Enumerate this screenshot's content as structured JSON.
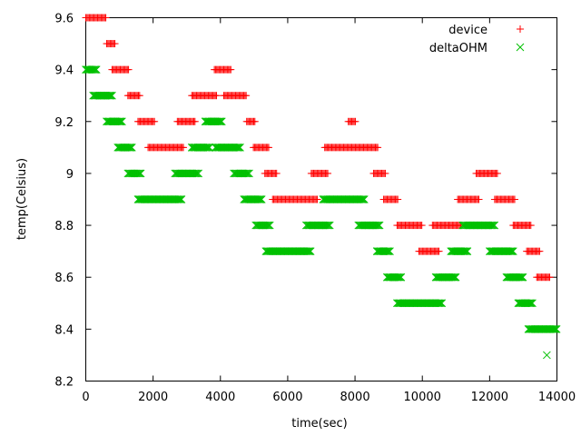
{
  "chart_data": {
    "type": "scatter",
    "title": "",
    "xlabel": "time(sec)",
    "ylabel": "temp(Celsius)",
    "xlim": [
      0,
      14000
    ],
    "ylim": [
      8.2,
      9.6
    ],
    "x_ticks": [
      0,
      2000,
      4000,
      6000,
      8000,
      10000,
      12000,
      14000
    ],
    "x_tick_labels": [
      "0",
      "2000",
      "4000",
      "6000",
      "8000",
      "10000",
      "12000",
      "14000"
    ],
    "y_ticks": [
      8.2,
      8.4,
      8.6,
      8.8,
      9.0,
      9.2,
      9.4,
      9.6
    ],
    "y_tick_labels": [
      "8.2",
      "8.4",
      "8.6",
      "8.8",
      "9",
      "9.2",
      "9.4",
      "9.6"
    ],
    "grid": false,
    "legend_position": "top-right",
    "series": [
      {
        "name": "device",
        "marker": "plus",
        "color": "#ff0000",
        "runs": [
          {
            "y": 9.6,
            "x_start": 0,
            "x_end": 620
          },
          {
            "y": 9.5,
            "x_start": 620,
            "x_end": 880
          },
          {
            "y": 9.4,
            "x_start": 780,
            "x_end": 1300
          },
          {
            "y": 9.3,
            "x_start": 1250,
            "x_end": 1620
          },
          {
            "y": 9.2,
            "x_start": 1550,
            "x_end": 2050
          },
          {
            "y": 9.1,
            "x_start": 1850,
            "x_end": 2900
          },
          {
            "y": 9.2,
            "x_start": 2720,
            "x_end": 3250
          },
          {
            "y": 9.3,
            "x_start": 3150,
            "x_end": 3900
          },
          {
            "y": 9.4,
            "x_start": 3820,
            "x_end": 4320
          },
          {
            "y": 9.3,
            "x_start": 4100,
            "x_end": 4780
          },
          {
            "y": 9.2,
            "x_start": 4780,
            "x_end": 5050
          },
          {
            "y": 9.1,
            "x_start": 4980,
            "x_end": 5450
          },
          {
            "y": 9.0,
            "x_start": 5320,
            "x_end": 5700
          },
          {
            "y": 8.9,
            "x_start": 5550,
            "x_end": 6900
          },
          {
            "y": 9.0,
            "x_start": 6700,
            "x_end": 7200
          },
          {
            "y": 9.1,
            "x_start": 7100,
            "x_end": 8700
          },
          {
            "y": 9.2,
            "x_start": 7800,
            "x_end": 8020
          },
          {
            "y": 9.0,
            "x_start": 8550,
            "x_end": 8900
          },
          {
            "y": 8.9,
            "x_start": 8850,
            "x_end": 9300
          },
          {
            "y": 8.8,
            "x_start": 9250,
            "x_end": 10000
          },
          {
            "y": 8.7,
            "x_start": 9900,
            "x_end": 10500
          },
          {
            "y": 8.8,
            "x_start": 10300,
            "x_end": 11150
          },
          {
            "y": 8.9,
            "x_start": 11050,
            "x_end": 11700
          },
          {
            "y": 9.0,
            "x_start": 11600,
            "x_end": 12250
          },
          {
            "y": 8.9,
            "x_start": 12150,
            "x_end": 12750
          },
          {
            "y": 8.8,
            "x_start": 12700,
            "x_end": 13250
          },
          {
            "y": 8.7,
            "x_start": 13100,
            "x_end": 13500
          },
          {
            "y": 8.6,
            "x_start": 13400,
            "x_end": 13800
          }
        ]
      },
      {
        "name": "deltaOHM",
        "marker": "x",
        "color": "#00c000",
        "runs": [
          {
            "y": 9.4,
            "x_start": 0,
            "x_end": 320
          },
          {
            "y": 9.3,
            "x_start": 220,
            "x_end": 780
          },
          {
            "y": 9.2,
            "x_start": 620,
            "x_end": 1100
          },
          {
            "y": 9.1,
            "x_start": 950,
            "x_end": 1400
          },
          {
            "y": 9.0,
            "x_start": 1250,
            "x_end": 1650
          },
          {
            "y": 8.9,
            "x_start": 1550,
            "x_end": 2850
          },
          {
            "y": 9.0,
            "x_start": 2650,
            "x_end": 3350
          },
          {
            "y": 9.1,
            "x_start": 3150,
            "x_end": 3700
          },
          {
            "y": 9.2,
            "x_start": 3550,
            "x_end": 4050
          },
          {
            "y": 9.1,
            "x_start": 3850,
            "x_end": 4600
          },
          {
            "y": 9.0,
            "x_start": 4400,
            "x_end": 4880
          },
          {
            "y": 8.9,
            "x_start": 4700,
            "x_end": 5250
          },
          {
            "y": 8.8,
            "x_start": 5050,
            "x_end": 5500
          },
          {
            "y": 8.7,
            "x_start": 5350,
            "x_end": 6700
          },
          {
            "y": 8.8,
            "x_start": 6550,
            "x_end": 7250
          },
          {
            "y": 8.9,
            "x_start": 7050,
            "x_end": 8300
          },
          {
            "y": 8.8,
            "x_start": 8100,
            "x_end": 8750
          },
          {
            "y": 8.7,
            "x_start": 8650,
            "x_end": 9050
          },
          {
            "y": 8.6,
            "x_start": 8950,
            "x_end": 9400
          },
          {
            "y": 8.5,
            "x_start": 9250,
            "x_end": 10600
          },
          {
            "y": 8.6,
            "x_start": 10400,
            "x_end": 11000
          },
          {
            "y": 8.7,
            "x_start": 10850,
            "x_end": 11350
          },
          {
            "y": 8.8,
            "x_start": 11200,
            "x_end": 12150
          },
          {
            "y": 8.7,
            "x_start": 12000,
            "x_end": 12700
          },
          {
            "y": 8.6,
            "x_start": 12500,
            "x_end": 13000
          },
          {
            "y": 8.5,
            "x_start": 12850,
            "x_end": 13300
          },
          {
            "y": 8.4,
            "x_start": 13150,
            "x_end": 14000
          }
        ],
        "points": [
          {
            "x": 13700,
            "y": 8.3
          }
        ]
      }
    ]
  }
}
